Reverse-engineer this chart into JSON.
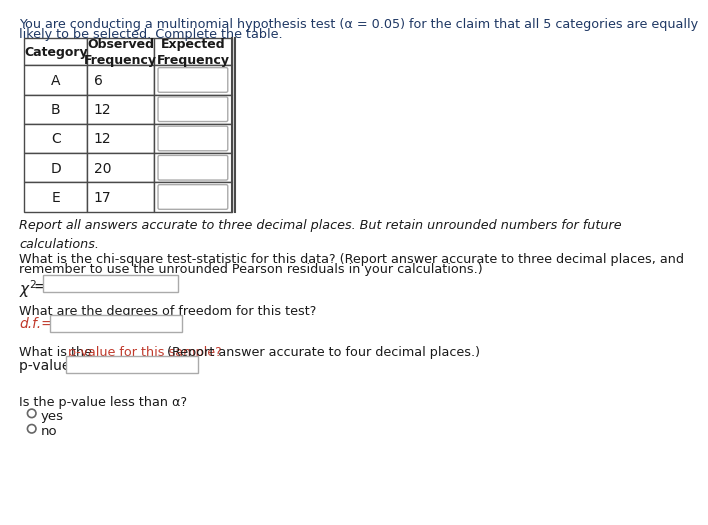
{
  "title_line1": "You are conducting a multinomial hypothesis test (α = 0.05) for the claim that all 5 categories are equally",
  "title_line2": "likely to be selected. Complete the table.",
  "categories": [
    "A",
    "B",
    "C",
    "D",
    "E"
  ],
  "observed": [
    6,
    12,
    12,
    20,
    17
  ],
  "col_header0": "Category",
  "col_header1": "Observed\nFrequency",
  "col_header2": "Expected\nFrequency",
  "italic_note": "Report all answers accurate to three decimal places. But retain unrounded numbers for future\ncalculations.",
  "q1_line1": "What is the chi-square test-statistic for this data? (Report answer accurate to three decimal places, and",
  "q1_line2": "remember to use the unrounded Pearson residuals in your calculations.)",
  "q2": "What are the degrees of freedom for this test?",
  "q3_part1": "What is the ",
  "q3_red": "p-value for this sample?",
  "q3_part2": " (Report answer accurate to four decimal places.)",
  "q4": "Is the p-value less than α?",
  "radio_options": [
    "yes",
    "no"
  ],
  "bg_color": "#ffffff",
  "title_color": "#1f3864",
  "text_color": "#1a1a1a",
  "red_color": "#c0392b",
  "table_border_color": "#4a4a4a",
  "input_box_color": "#ffffff",
  "input_box_border": "#aaaaaa",
  "header_text_color": "#1a1a1a"
}
